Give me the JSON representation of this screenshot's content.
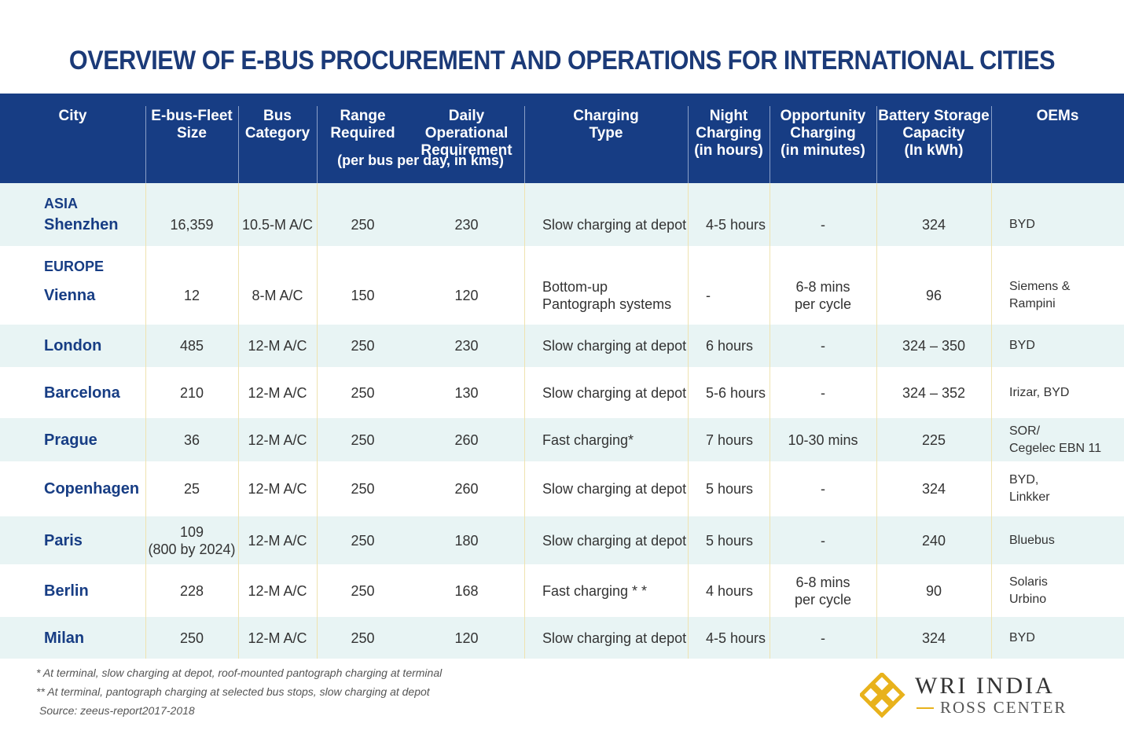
{
  "header": {
    "title": "OVERVIEW OF E-BUS PROCUREMENT AND OPERATIONS FOR INTERNATIONAL CITIES"
  },
  "table": {
    "columns": [
      [
        "City"
      ],
      [
        "E-bus-Fleet",
        "Size"
      ],
      [
        "Bus",
        "Category"
      ],
      [
        "Range",
        "Required"
      ],
      [
        "Daily Operational",
        "Requirement"
      ],
      [
        "Charging",
        "Type"
      ],
      [
        "Night",
        "Charging",
        "(in hours)"
      ],
      [
        "Opportunity",
        "Charging",
        "(in minutes)"
      ],
      [
        "Battery Storage",
        "Capacity",
        "(In kWh)"
      ],
      [
        "OEMs"
      ]
    ],
    "range_note": "(per bus per day, in kms)",
    "rows": [
      {
        "region": "ASIA",
        "cells": [
          [
            "Shenzhen"
          ],
          [
            "16,359"
          ],
          [
            "10.5-M A/C"
          ],
          [
            "250"
          ],
          [
            "230"
          ],
          [
            "Slow charging at depot"
          ],
          [
            "4-5 hours"
          ],
          [
            "-"
          ],
          [
            "324"
          ],
          [
            "BYD"
          ]
        ]
      },
      {
        "region": "EUROPE",
        "cells": [
          [
            "Vienna"
          ],
          [
            "12"
          ],
          [
            "8-M A/C"
          ],
          [
            "150"
          ],
          [
            "120"
          ],
          [
            "Bottom-up",
            "Pantograph systems"
          ],
          [
            "-"
          ],
          [
            "6-8 mins",
            "per cycle"
          ],
          [
            "96"
          ],
          [
            "Siemens &",
            "Rampini"
          ]
        ]
      },
      {
        "cells": [
          [
            "London"
          ],
          [
            "485"
          ],
          [
            "12-M A/C"
          ],
          [
            "250"
          ],
          [
            "230"
          ],
          [
            "Slow charging at depot"
          ],
          [
            "6 hours"
          ],
          [
            "-"
          ],
          [
            "324 – 350"
          ],
          [
            "BYD"
          ]
        ]
      },
      {
        "cells": [
          [
            "Barcelona"
          ],
          [
            "210"
          ],
          [
            "12-M A/C"
          ],
          [
            "250"
          ],
          [
            "130"
          ],
          [
            "Slow charging at depot"
          ],
          [
            "5-6 hours"
          ],
          [
            "-"
          ],
          [
            "324 – 352"
          ],
          [
            "Irizar, BYD"
          ]
        ]
      },
      {
        "cells": [
          [
            "Prague"
          ],
          [
            "36"
          ],
          [
            "12-M A/C"
          ],
          [
            "250"
          ],
          [
            "260"
          ],
          [
            "Fast charging*"
          ],
          [
            "7 hours"
          ],
          [
            "10-30 mins"
          ],
          [
            "225"
          ],
          [
            "SOR/",
            "Cegelec EBN 11"
          ]
        ]
      },
      {
        "cells": [
          [
            "Copenhagen"
          ],
          [
            "25"
          ],
          [
            "12-M A/C"
          ],
          [
            "250"
          ],
          [
            "260"
          ],
          [
            "Slow charging at depot"
          ],
          [
            "5 hours"
          ],
          [
            "-"
          ],
          [
            "324"
          ],
          [
            "BYD,",
            "Linkker"
          ]
        ]
      },
      {
        "cells": [
          [
            "Paris"
          ],
          [
            "109",
            "(800 by 2024)"
          ],
          [
            "12-M A/C"
          ],
          [
            "250"
          ],
          [
            "180"
          ],
          [
            "Slow charging at depot"
          ],
          [
            "5 hours"
          ],
          [
            "-"
          ],
          [
            "240"
          ],
          [
            "Bluebus"
          ]
        ]
      },
      {
        "cells": [
          [
            "Berlin"
          ],
          [
            "228"
          ],
          [
            "12-M A/C"
          ],
          [
            "250"
          ],
          [
            "168"
          ],
          [
            "Fast charging * *"
          ],
          [
            "4 hours"
          ],
          [
            "6-8 mins",
            "per cycle"
          ],
          [
            "90"
          ],
          [
            "Solaris",
            "Urbino"
          ]
        ]
      },
      {
        "cells": [
          [
            "Milan"
          ],
          [
            "250"
          ],
          [
            "12-M A/C"
          ],
          [
            "250"
          ],
          [
            "120"
          ],
          [
            "Slow charging at depot"
          ],
          [
            "4-5 hours"
          ],
          [
            "-"
          ],
          [
            "324"
          ],
          [
            "BYD"
          ]
        ]
      }
    ]
  },
  "footnotes": [
    "* At terminal, slow charging at depot, roof-mounted pantograph charging at terminal",
    "** At terminal, pantograph charging at selected bus stops, slow charging at depot",
    "Source: zeeus-report2017-2018"
  ],
  "logo": {
    "name": "WRI INDIA",
    "sub": "ROSS CENTER"
  }
}
